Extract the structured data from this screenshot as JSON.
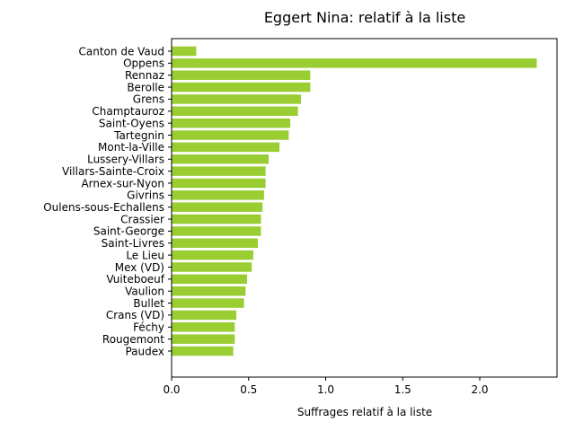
{
  "chart_data": {
    "type": "bar",
    "orientation": "horizontal",
    "title": "Eggert Nina: relatif à la liste",
    "xlabel": "Suffrages relatif à la liste",
    "ylabel": "",
    "xlim": [
      0,
      2.5
    ],
    "xticks": [
      0.0,
      0.5,
      1.0,
      1.5,
      2.0
    ],
    "xtick_labels": [
      "0.0",
      "0.5",
      "1.0",
      "1.5",
      "2.0"
    ],
    "bar_color": "#9acd32",
    "grid": false,
    "categories": [
      "Canton de Vaud",
      "Oppens",
      "Rennaz",
      "Berolle",
      "Grens",
      "Champtauroz",
      "Saint-Oyens",
      "Tartegnin",
      "Mont-la-Ville",
      "Lussery-Villars",
      "Villars-Sainte-Croix",
      "Arnex-sur-Nyon",
      "Givrins",
      "Oulens-sous-Echallens",
      "Crassier",
      "Saint-George",
      "Saint-Livres",
      "Le Lieu",
      "Mex (VD)",
      "Vuiteboeuf",
      "Vaulion",
      "Bullet",
      "Crans (VD)",
      "Féchy",
      "Rougemont",
      "Paudex"
    ],
    "values": [
      0.16,
      2.37,
      0.9,
      0.9,
      0.84,
      0.82,
      0.77,
      0.76,
      0.7,
      0.63,
      0.61,
      0.61,
      0.6,
      0.59,
      0.58,
      0.58,
      0.56,
      0.53,
      0.52,
      0.49,
      0.48,
      0.47,
      0.42,
      0.41,
      0.41,
      0.4
    ]
  }
}
